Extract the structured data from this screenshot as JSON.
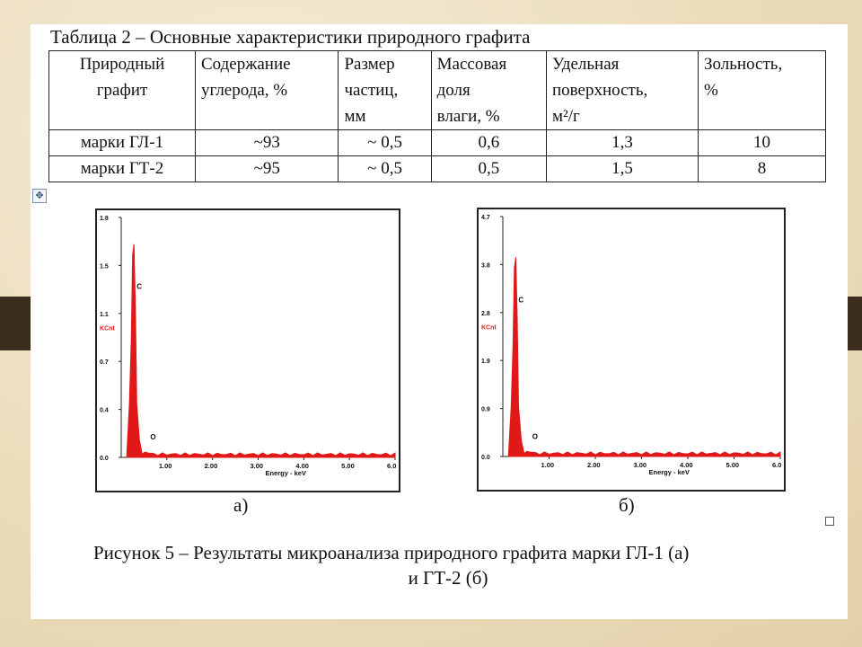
{
  "table": {
    "caption": "Таблица 2 – Основные характеристики природного графита",
    "headers": [
      [
        "Природный",
        "графит"
      ],
      [
        "Содержание",
        "углерода, %"
      ],
      [
        "Размер",
        "частиц,",
        "мм"
      ],
      [
        "Массовая",
        "доля",
        "влаги, %"
      ],
      [
        "Удельная",
        "поверхность,",
        "м²/г"
      ],
      [
        "Зольность,",
        "%"
      ]
    ],
    "rows": [
      [
        "марки ГЛ-1",
        "~93",
        "~ 0,5",
        "0,6",
        "1,3",
        "10"
      ],
      [
        "марки ГТ-2",
        "~95",
        "~ 0,5",
        "0,5",
        "1,5",
        "8"
      ]
    ]
  },
  "chart_data": [
    {
      "type": "line",
      "panel": "а)",
      "ylabel": "KCnt",
      "xlabel": "Energy - keV",
      "x_ticks": [
        "1.00",
        "2.00",
        "3.00",
        "4.00",
        "5.00",
        "6.0"
      ],
      "y_ticks": [
        "0.0",
        "0.4",
        "0.7",
        "1.1",
        "1.5",
        "1.8"
      ],
      "xlim": [
        0,
        6.0
      ],
      "ylim": [
        0,
        1.8
      ],
      "peaks": [
        {
          "label": "C",
          "x": 0.28,
          "y": 1.6
        },
        {
          "label": "O",
          "x": 0.52,
          "y": 0.04
        }
      ]
    },
    {
      "type": "line",
      "panel": "б)",
      "ylabel": "KCnt",
      "xlabel": "Energy - keV",
      "x_ticks": [
        "1.00",
        "2.00",
        "3.00",
        "4.00",
        "5.00",
        "6.0"
      ],
      "y_ticks": [
        "0.0",
        "0.9",
        "1.9",
        "2.8",
        "3.8",
        "4.7"
      ],
      "xlim": [
        0,
        6.0
      ],
      "ylim": [
        0,
        4.7
      ],
      "peaks": [
        {
          "label": "C",
          "x": 0.28,
          "y": 3.9
        },
        {
          "label": "O",
          "x": 0.52,
          "y": 0.1
        }
      ]
    }
  ],
  "panel_labels": [
    "а)",
    "б)"
  ],
  "figure_caption": {
    "line1": "Рисунок 5 – Результаты микроанализа природного графита марки ГЛ-1 (а)",
    "line2": "и ГТ-2 (б)"
  },
  "colors": {
    "spectrum": "#e01818",
    "background": "#efe3c8",
    "band": "#3a2d1f"
  }
}
